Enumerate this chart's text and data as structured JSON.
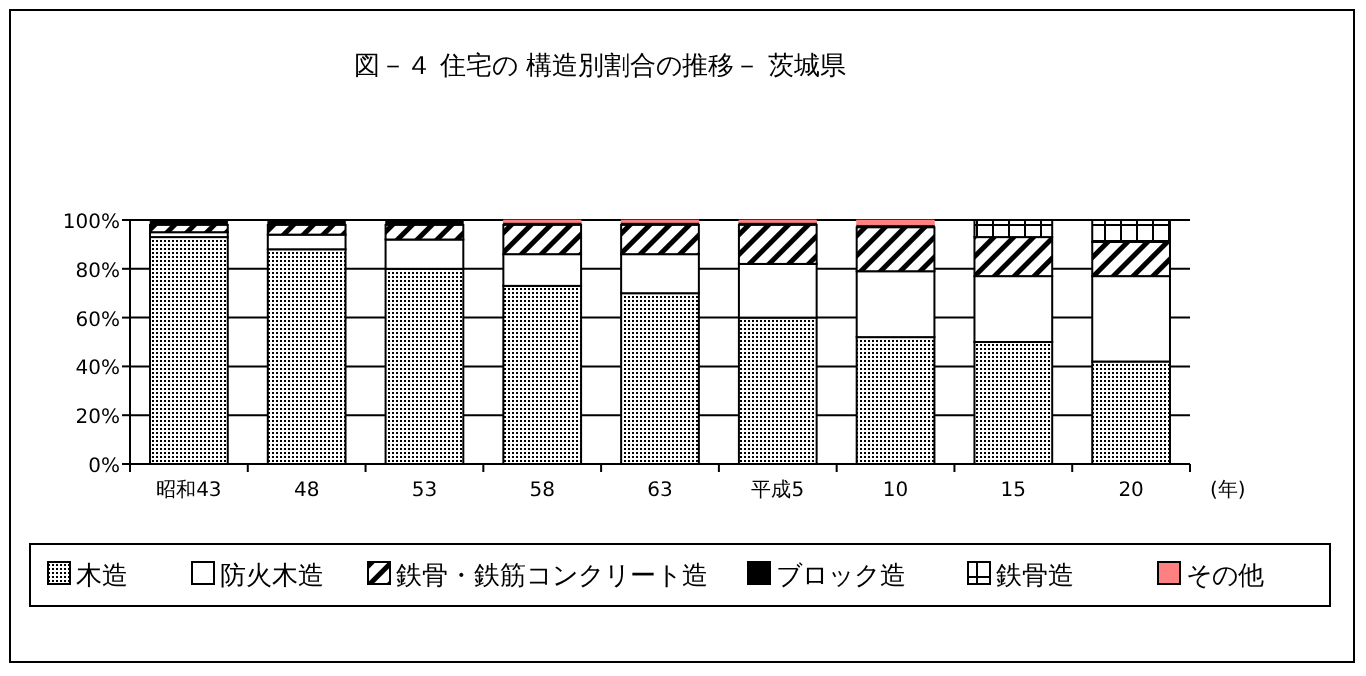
{
  "chart_data": {
    "type": "bar",
    "stacked": true,
    "title": "図－４ 住宅の 構造別割合の推移－ 茨城県",
    "xlabel": "(年)",
    "categories": [
      "昭和43",
      "48",
      "53",
      "58",
      "63",
      "平成5",
      "10",
      "15",
      "20"
    ],
    "series": [
      {
        "name": "木造",
        "color": "#000000",
        "values": [
          93,
          88,
          80,
          73,
          70,
          60,
          52,
          50,
          42
        ]
      },
      {
        "name": "防火木造",
        "color": "#ffffff",
        "values": [
          2,
          6,
          12,
          13,
          16,
          22,
          27,
          27,
          35
        ]
      },
      {
        "name": "鉄骨・鉄筋コンクリート造",
        "color": "#000000",
        "values": [
          3,
          4,
          6,
          12,
          12,
          16,
          18,
          16,
          14
        ]
      },
      {
        "name": "ブロック造",
        "color": "#000000",
        "values": [
          2,
          2,
          2,
          1,
          1,
          1,
          1,
          0,
          0
        ]
      },
      {
        "name": "鉄骨造",
        "color": "#000000",
        "values": [
          0,
          0,
          0,
          0,
          0,
          0,
          0,
          7,
          9
        ]
      },
      {
        "name": "その他",
        "color": "#ff8080",
        "values": [
          0,
          0,
          0,
          1,
          1,
          1,
          2,
          0,
          0
        ]
      }
    ],
    "ylim": [
      0,
      100
    ],
    "yticks": [
      {
        "value": 0,
        "label": "0%"
      },
      {
        "value": 20,
        "label": "20%"
      },
      {
        "value": 40,
        "label": "40%"
      },
      {
        "value": 60,
        "label": "60%"
      },
      {
        "value": 80,
        "label": "80%"
      },
      {
        "value": 100,
        "label": "100%"
      }
    ],
    "grid": "y",
    "legend": "bottom"
  }
}
